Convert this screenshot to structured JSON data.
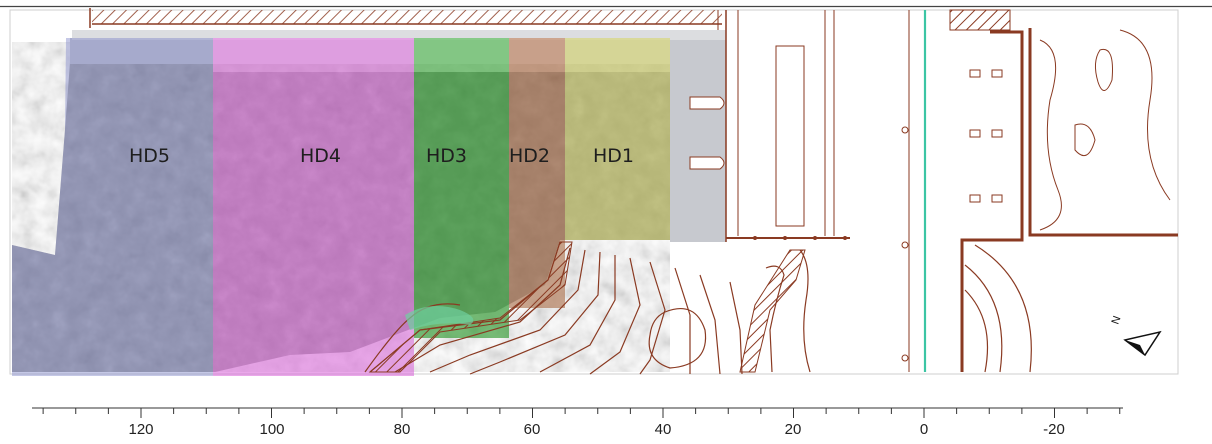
{
  "zones": [
    {
      "id": "hd5",
      "label": "HD5",
      "color": "#7f86c8"
    },
    {
      "id": "hd4",
      "label": "HD4",
      "color": "#d860d8"
    },
    {
      "id": "hd3",
      "label": "HD3",
      "color": "#2f9a2f"
    },
    {
      "id": "hd2",
      "label": "HD2",
      "color": "#a86a45"
    },
    {
      "id": "hd1",
      "label": "HD1",
      "color": "#c8c860"
    }
  ],
  "scale": {
    "labels": [
      "120",
      "100",
      "80",
      "60",
      "40",
      "20",
      "0",
      "-20"
    ]
  },
  "north_arrow_letter": "N",
  "colors": {
    "plan_lines": "#8a3a22",
    "centerline": "#3cc5a4",
    "dam_grey": "#c7c9cf"
  }
}
